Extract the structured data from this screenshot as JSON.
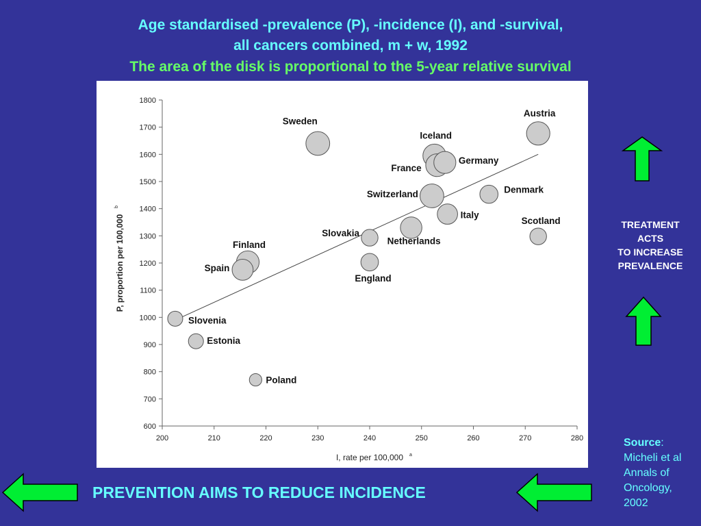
{
  "slide": {
    "title_line1": "Age standardised -prevalence (P), -incidence (I), and -survival,",
    "title_line2": "all cancers combined, m + w,  1992",
    "title_line3": "The area of the disk is proportional to the 5-year relative survival",
    "treatment_lines": [
      "TREATMENT",
      "ACTS",
      "TO INCREASE",
      "PREVALENCE"
    ],
    "prevention_text": "PREVENTION AIMS TO REDUCE INCIDENCE",
    "source_label": "Source",
    "source_sep": ":",
    "source_lines": [
      "Micheli et al",
      "Annals of",
      "Oncology,",
      "2002"
    ],
    "colors": {
      "background": "#333399",
      "title": "#66ffff",
      "subtitle": "#66ff66",
      "arrow_fill": "#00ee33",
      "bubble_fill": "#cccccc"
    }
  },
  "chart_data": {
    "type": "scatter",
    "xlabel": "I, rate per 100,000",
    "xlabel_sup": "a",
    "ylabel": "P, proportion per 100,000",
    "ylabel_sup": "b",
    "xlim": [
      200,
      280
    ],
    "ylim": [
      600,
      1800
    ],
    "xticks": [
      200,
      210,
      220,
      230,
      240,
      250,
      260,
      270,
      280
    ],
    "yticks": [
      600,
      700,
      800,
      900,
      1000,
      1100,
      1200,
      1300,
      1400,
      1500,
      1600,
      1700,
      1800
    ],
    "grid": false,
    "trend_line": [
      [
        202.5,
        990
      ],
      [
        272.5,
        1600
      ]
    ],
    "points": [
      {
        "label": "Sweden",
        "x": 230,
        "y": 1640,
        "survival": 55
      },
      {
        "label": "Austria",
        "x": 272.5,
        "y": 1677,
        "survival": 53
      },
      {
        "label": "Iceland",
        "x": 252.5,
        "y": 1595,
        "survival": 52
      },
      {
        "label": "France",
        "x": 253,
        "y": 1560,
        "survival": 50
      },
      {
        "label": "Germany",
        "x": 254.5,
        "y": 1570,
        "survival": 47
      },
      {
        "label": "Switzerland",
        "x": 252,
        "y": 1447,
        "survival": 55
      },
      {
        "label": "Denmark",
        "x": 263,
        "y": 1453,
        "survival": 32
      },
      {
        "label": "Italy",
        "x": 255,
        "y": 1380,
        "survival": 40
      },
      {
        "label": "Scotland",
        "x": 272.5,
        "y": 1298,
        "survival": 27
      },
      {
        "label": "Netherlands",
        "x": 248,
        "y": 1330,
        "survival": 45
      },
      {
        "label": "Slovakia",
        "x": 240,
        "y": 1293,
        "survival": 27
      },
      {
        "label": "England",
        "x": 240,
        "y": 1203,
        "survival": 30
      },
      {
        "label": "Finland",
        "x": 216.5,
        "y": 1203,
        "survival": 50
      },
      {
        "label": "Spain",
        "x": 215.5,
        "y": 1175,
        "survival": 43
      },
      {
        "label": "Slovenia",
        "x": 202.5,
        "y": 995,
        "survival": 22
      },
      {
        "label": "Estonia",
        "x": 206.5,
        "y": 912,
        "survival": 22
      },
      {
        "label": "Poland",
        "x": 218,
        "y": 770,
        "survival": 15
      }
    ]
  }
}
